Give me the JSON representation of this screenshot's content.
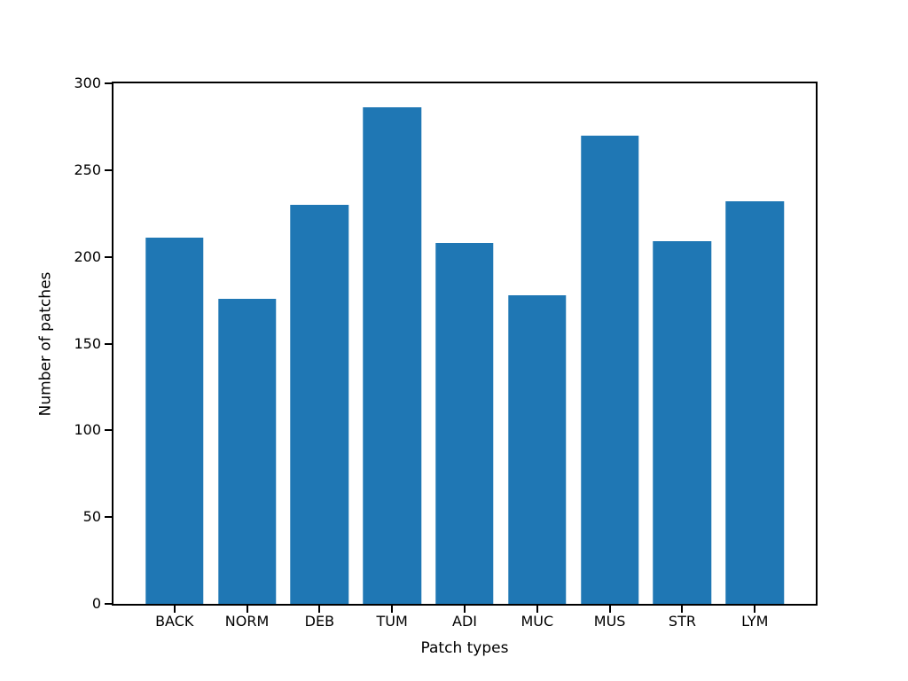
{
  "figure": {
    "background": "#ffffff",
    "axis_color": "#000000",
    "text_color": "#000000"
  },
  "chart_data": {
    "type": "bar",
    "xlabel": "Patch types",
    "ylabel": "Number of patches",
    "categories": [
      "BACK",
      "NORM",
      "DEB",
      "TUM",
      "ADI",
      "MUC",
      "MUS",
      "STR",
      "LYM"
    ],
    "values": [
      211,
      176,
      230,
      286,
      208,
      178,
      270,
      209,
      232
    ],
    "ylim": [
      0,
      300
    ],
    "yticks": [
      0,
      50,
      100,
      150,
      200,
      250,
      300
    ],
    "bar_color": "#1f77b4",
    "bar_width_fraction": 0.8,
    "grid": false,
    "legend_position": "none"
  }
}
